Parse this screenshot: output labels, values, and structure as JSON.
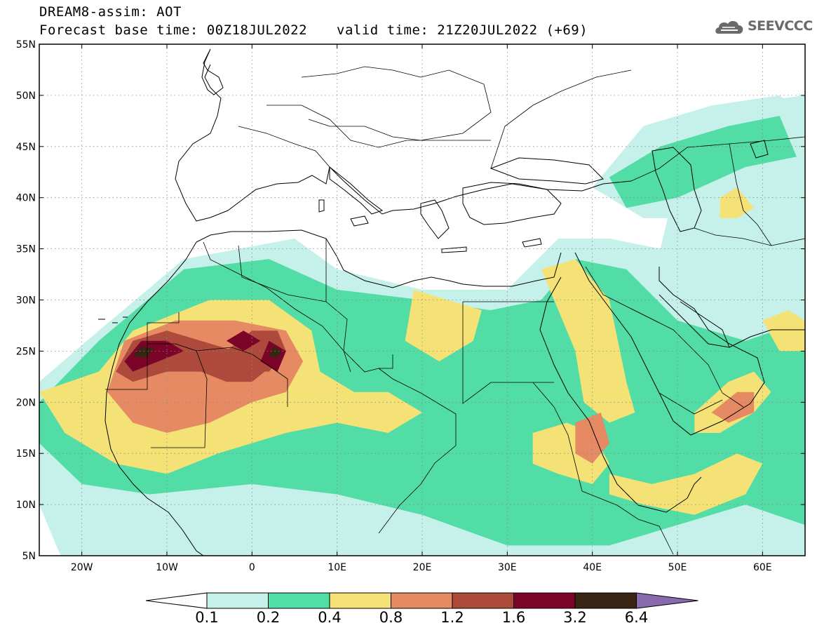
{
  "header": {
    "line1": "DREAM8-assim: AOT",
    "line2": "Forecast base time: 00Z18JUL2022",
    "valid": "valid time: 21Z20JUL2022 (+69)"
  },
  "logo": {
    "text": "SEEVCCC",
    "icon": "cloud-logo-icon"
  },
  "map": {
    "lon_min": -25,
    "lon_max": 65,
    "lat_min": 5,
    "lat_max": 55,
    "lat_ticks": [
      {
        "value": 55,
        "label": "55N"
      },
      {
        "value": 50,
        "label": "50N"
      },
      {
        "value": 45,
        "label": "45N"
      },
      {
        "value": 40,
        "label": "40N"
      },
      {
        "value": 35,
        "label": "35N"
      },
      {
        "value": 30,
        "label": "30N"
      },
      {
        "value": 25,
        "label": "25N"
      },
      {
        "value": 20,
        "label": "20N"
      },
      {
        "value": 15,
        "label": "15N"
      },
      {
        "value": 10,
        "label": "10N"
      },
      {
        "value": 5,
        "label": "5N"
      }
    ],
    "lon_ticks": [
      {
        "value": -20,
        "label": "20W"
      },
      {
        "value": -10,
        "label": "10W"
      },
      {
        "value": 0,
        "label": "0"
      },
      {
        "value": 10,
        "label": "10E"
      },
      {
        "value": 20,
        "label": "20E"
      },
      {
        "value": 30,
        "label": "30E"
      },
      {
        "value": 40,
        "label": "40E"
      },
      {
        "value": 50,
        "label": "50E"
      },
      {
        "value": 60,
        "label": "60E"
      }
    ],
    "gridlines": "dotted"
  },
  "colorbar": {
    "labels": [
      "0.1",
      "0.2",
      "0.4",
      "0.8",
      "1.2",
      "1.6",
      "3.2",
      "6.4"
    ],
    "colors": [
      "#ffffff",
      "#c6f1ea",
      "#52dca6",
      "#f5e276",
      "#e58a62",
      "#ae4a3c",
      "#7c0428",
      "#3a2414",
      "#8a6aae"
    ]
  },
  "chart_data": {
    "type": "heatmap",
    "title": "DREAM8-assim: AOT",
    "levels": [
      0.1,
      0.2,
      0.4,
      0.8,
      1.2,
      1.6,
      3.2,
      6.4
    ],
    "regions": [
      {
        "level": 0.1,
        "lonlat": [
          [
            -25,
            22
          ],
          [
            -18,
            27
          ],
          [
            -8,
            34
          ],
          [
            5,
            36
          ],
          [
            10,
            33
          ],
          [
            20,
            31
          ],
          [
            30,
            31
          ],
          [
            36,
            36
          ],
          [
            42,
            36
          ],
          [
            48,
            35
          ],
          [
            50,
            42
          ],
          [
            56,
            49
          ],
          [
            65,
            50
          ],
          [
            65,
            4
          ],
          [
            -22,
            4
          ],
          [
            -25,
            10
          ]
        ]
      },
      {
        "level": 0.1,
        "lonlat": [
          [
            40,
            41
          ],
          [
            46,
            47
          ],
          [
            54,
            49
          ],
          [
            62,
            50
          ],
          [
            65,
            48
          ],
          [
            65,
            42
          ],
          [
            58,
            40
          ],
          [
            52,
            38
          ],
          [
            46,
            38
          ]
        ]
      },
      {
        "level": 0.2,
        "lonlat": [
          [
            -25,
            20
          ],
          [
            -18,
            26
          ],
          [
            -8,
            33
          ],
          [
            2,
            34
          ],
          [
            10,
            31
          ],
          [
            20,
            30
          ],
          [
            28,
            29
          ],
          [
            34,
            30
          ],
          [
            38,
            34
          ],
          [
            44,
            33
          ],
          [
            50,
            28
          ],
          [
            58,
            26
          ],
          [
            65,
            28
          ],
          [
            65,
            8
          ],
          [
            58,
            10
          ],
          [
            50,
            8
          ],
          [
            42,
            6
          ],
          [
            30,
            6
          ],
          [
            20,
            9
          ],
          [
            10,
            11
          ],
          [
            0,
            12
          ],
          [
            -12,
            11
          ],
          [
            -20,
            12
          ],
          [
            -25,
            16
          ]
        ]
      },
      {
        "level": 0.2,
        "lonlat": [
          [
            42,
            42
          ],
          [
            48,
            45
          ],
          [
            56,
            47
          ],
          [
            62,
            48
          ],
          [
            64,
            44
          ],
          [
            58,
            43
          ],
          [
            50,
            40
          ],
          [
            44,
            39
          ]
        ]
      },
      {
        "level": 0.4,
        "lonlat": [
          [
            -25,
            21
          ],
          [
            -18,
            23
          ],
          [
            -14,
            27
          ],
          [
            -5,
            30
          ],
          [
            2,
            30
          ],
          [
            7,
            27
          ],
          [
            8,
            23
          ],
          [
            12,
            21
          ],
          [
            16,
            21
          ],
          [
            20,
            19
          ],
          [
            16,
            17
          ],
          [
            10,
            18
          ],
          [
            4,
            17
          ],
          [
            -4,
            15
          ],
          [
            -10,
            13
          ],
          [
            -16,
            14
          ],
          [
            -22,
            17
          ]
        ]
      },
      {
        "level": 0.4,
        "lonlat": [
          [
            19,
            31
          ],
          [
            23,
            30
          ],
          [
            27,
            29
          ],
          [
            26,
            26
          ],
          [
            22,
            24
          ],
          [
            18,
            26
          ]
        ]
      },
      {
        "level": 0.4,
        "lonlat": [
          [
            34,
            33
          ],
          [
            38,
            34
          ],
          [
            42,
            30
          ],
          [
            44,
            22
          ],
          [
            45,
            19
          ],
          [
            42,
            18
          ],
          [
            39,
            20
          ],
          [
            38,
            25
          ]
        ]
      },
      {
        "level": 0.4,
        "lonlat": [
          [
            33,
            17
          ],
          [
            37,
            18
          ],
          [
            40,
            17
          ],
          [
            42,
            14
          ],
          [
            40,
            12
          ],
          [
            36,
            13
          ],
          [
            33,
            14
          ]
        ]
      },
      {
        "level": 0.4,
        "lonlat": [
          [
            42,
            13
          ],
          [
            47,
            12
          ],
          [
            52,
            13
          ],
          [
            57,
            15
          ],
          [
            60,
            14
          ],
          [
            58,
            11
          ],
          [
            52,
            9
          ],
          [
            46,
            10
          ],
          [
            42,
            11
          ]
        ]
      },
      {
        "level": 0.4,
        "lonlat": [
          [
            52,
            19
          ],
          [
            56,
            22
          ],
          [
            59,
            23
          ],
          [
            61,
            21
          ],
          [
            59,
            19
          ],
          [
            55,
            17
          ],
          [
            52,
            17
          ]
        ]
      },
      {
        "level": 0.4,
        "lonlat": [
          [
            60,
            28
          ],
          [
            63,
            29
          ],
          [
            65,
            28
          ],
          [
            65,
            25
          ],
          [
            62,
            25
          ]
        ]
      },
      {
        "level": 0.4,
        "lonlat": [
          [
            55,
            40
          ],
          [
            57,
            41
          ],
          [
            59,
            39
          ],
          [
            57,
            38
          ],
          [
            55,
            38
          ]
        ]
      },
      {
        "level": 0.8,
        "lonlat": [
          [
            -17,
            21
          ],
          [
            -15,
            26
          ],
          [
            -9,
            28
          ],
          [
            -2,
            28
          ],
          [
            4,
            27
          ],
          [
            6,
            24
          ],
          [
            4,
            21
          ],
          [
            0,
            20
          ],
          [
            -5,
            18
          ],
          [
            -10,
            17
          ],
          [
            -14,
            18
          ]
        ]
      },
      {
        "level": 0.8,
        "lonlat": [
          [
            38,
            18
          ],
          [
            41,
            19
          ],
          [
            42,
            16
          ],
          [
            40,
            14
          ],
          [
            38,
            15
          ]
        ]
      },
      {
        "level": 0.8,
        "lonlat": [
          [
            54,
            19
          ],
          [
            57,
            21
          ],
          [
            59,
            21
          ],
          [
            59,
            19
          ],
          [
            56,
            18
          ]
        ]
      },
      {
        "level": 1.2,
        "lonlat": [
          [
            -16,
            23
          ],
          [
            -14,
            26
          ],
          [
            -10,
            27
          ],
          [
            -6,
            26
          ],
          [
            -2,
            25
          ],
          [
            2,
            25
          ],
          [
            3,
            24
          ],
          [
            0,
            22
          ],
          [
            -3,
            22
          ],
          [
            -6,
            23
          ],
          [
            -10,
            23
          ],
          [
            -14,
            22
          ]
        ]
      },
      {
        "level": 1.2,
        "lonlat": [
          [
            -3,
            25
          ],
          [
            0,
            27
          ],
          [
            3,
            27
          ],
          [
            4,
            25
          ],
          [
            2,
            23
          ],
          [
            0,
            23
          ]
        ]
      },
      {
        "level": 1.6,
        "lonlat": [
          [
            -15,
            24
          ],
          [
            -13,
            26
          ],
          [
            -10,
            26
          ],
          [
            -8,
            25
          ],
          [
            -11,
            24
          ],
          [
            -14,
            23
          ]
        ]
      },
      {
        "level": 1.6,
        "lonlat": [
          [
            -3,
            26
          ],
          [
            -1,
            27
          ],
          [
            1,
            26
          ],
          [
            -1,
            25
          ]
        ]
      },
      {
        "level": 1.6,
        "lonlat": [
          [
            1,
            24
          ],
          [
            2,
            26
          ],
          [
            4,
            25
          ],
          [
            3,
            23
          ]
        ]
      },
      {
        "level": 3.2,
        "lonlat": [
          [
            -14,
            24.5
          ],
          [
            -13,
            25.5
          ],
          [
            -11.5,
            25.2
          ],
          [
            -12.5,
            24.3
          ]
        ]
      },
      {
        "level": 3.2,
        "lonlat": [
          [
            2,
            24.5
          ],
          [
            2.5,
            25.5
          ],
          [
            3.5,
            25
          ],
          [
            3,
            24.3
          ]
        ]
      }
    ]
  }
}
